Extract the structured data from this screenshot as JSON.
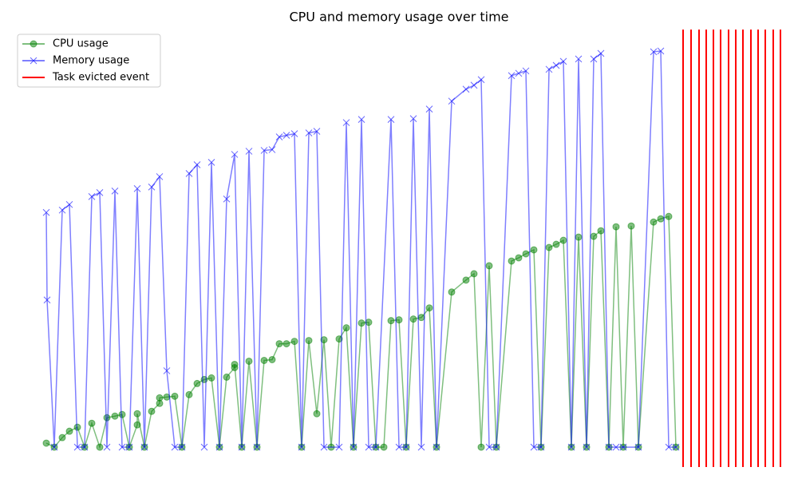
{
  "chart_data": {
    "type": "line",
    "title": "CPU and memory usage over time",
    "xlim": [
      0,
      950
    ],
    "ylim": [
      -25,
      525
    ],
    "legend": "upper left",
    "series": [
      {
        "name": "CPU usage",
        "color": "green",
        "marker": "o",
        "x": [
          13,
          23,
          33,
          42,
          52,
          61,
          70,
          80,
          89,
          99,
          108,
          117,
          127,
          127,
          136,
          145,
          155,
          155,
          164,
          174,
          183,
          192,
          202,
          211,
          220,
          230,
          239,
          249,
          249,
          258,
          267,
          277,
          286,
          296,
          305,
          314,
          324,
          333,
          342,
          352,
          361,
          370,
          380,
          389,
          398,
          408,
          417,
          426,
          436,
          445,
          455,
          464,
          473,
          483,
          493,
          502,
          521,
          539,
          549,
          558,
          568,
          577,
          596,
          605,
          614,
          624,
          633,
          643,
          652,
          661,
          671,
          680,
          690,
          699,
          708,
          718,
          727,
          736,
          746,
          755,
          774,
          783,
          793,
          802
        ],
        "values": [
          5,
          0,
          12,
          20,
          25,
          0,
          30,
          0,
          37,
          39,
          41,
          0,
          28,
          42,
          0,
          45,
          55,
          62,
          63,
          64,
          0,
          66,
          80,
          85,
          87,
          0,
          88,
          100,
          104,
          0,
          108,
          0,
          109,
          110,
          130,
          130,
          133,
          0,
          134,
          42,
          135,
          0,
          136,
          150,
          0,
          156,
          157,
          0,
          0,
          159,
          160,
          0,
          161,
          163,
          175,
          0,
          195,
          210,
          218,
          0,
          228,
          0,
          234,
          238,
          243,
          248,
          0,
          251,
          255,
          260,
          0,
          264,
          0,
          265,
          272,
          0,
          277,
          0,
          278,
          0,
          283,
          287,
          290,
          0
        ]
      },
      {
        "name": "Memory usage",
        "color": "blue",
        "marker": "x",
        "x": [
          13,
          14,
          23,
          33,
          42,
          52,
          61,
          70,
          80,
          89,
          99,
          108,
          117,
          127,
          136,
          145,
          155,
          164,
          174,
          183,
          192,
          202,
          211,
          220,
          230,
          239,
          249,
          258,
          267,
          277,
          286,
          296,
          305,
          314,
          324,
          333,
          342,
          352,
          361,
          380,
          389,
          398,
          408,
          417,
          426,
          445,
          455,
          464,
          473,
          483,
          493,
          502,
          521,
          539,
          549,
          558,
          568,
          577,
          596,
          605,
          614,
          624,
          633,
          643,
          652,
          661,
          671,
          680,
          690,
          699,
          708,
          718,
          727,
          736,
          755,
          774,
          783,
          793,
          802
        ],
        "values": [
          295,
          185,
          0,
          298,
          305,
          0,
          0,
          315,
          320,
          0,
          322,
          0,
          0,
          325,
          0,
          327,
          340,
          96,
          0,
          0,
          344,
          355,
          0,
          358,
          0,
          312,
          368,
          0,
          372,
          0,
          373,
          374,
          390,
          392,
          394,
          0,
          395,
          397,
          0,
          0,
          408,
          0,
          412,
          0,
          0,
          412,
          0,
          0,
          413,
          0,
          425,
          0,
          435,
          450,
          455,
          462,
          0,
          0,
          467,
          470,
          473,
          0,
          0,
          475,
          480,
          485,
          0,
          488,
          0,
          488,
          495,
          0,
          0,
          0,
          0,
          497,
          498,
          0,
          0
        ]
      }
    ],
    "events": {
      "name": "Task evicted event",
      "color": "red",
      "x": [
        811,
        821,
        831,
        840,
        849,
        858,
        868,
        877,
        886,
        896,
        905,
        914,
        924,
        933
      ]
    }
  }
}
